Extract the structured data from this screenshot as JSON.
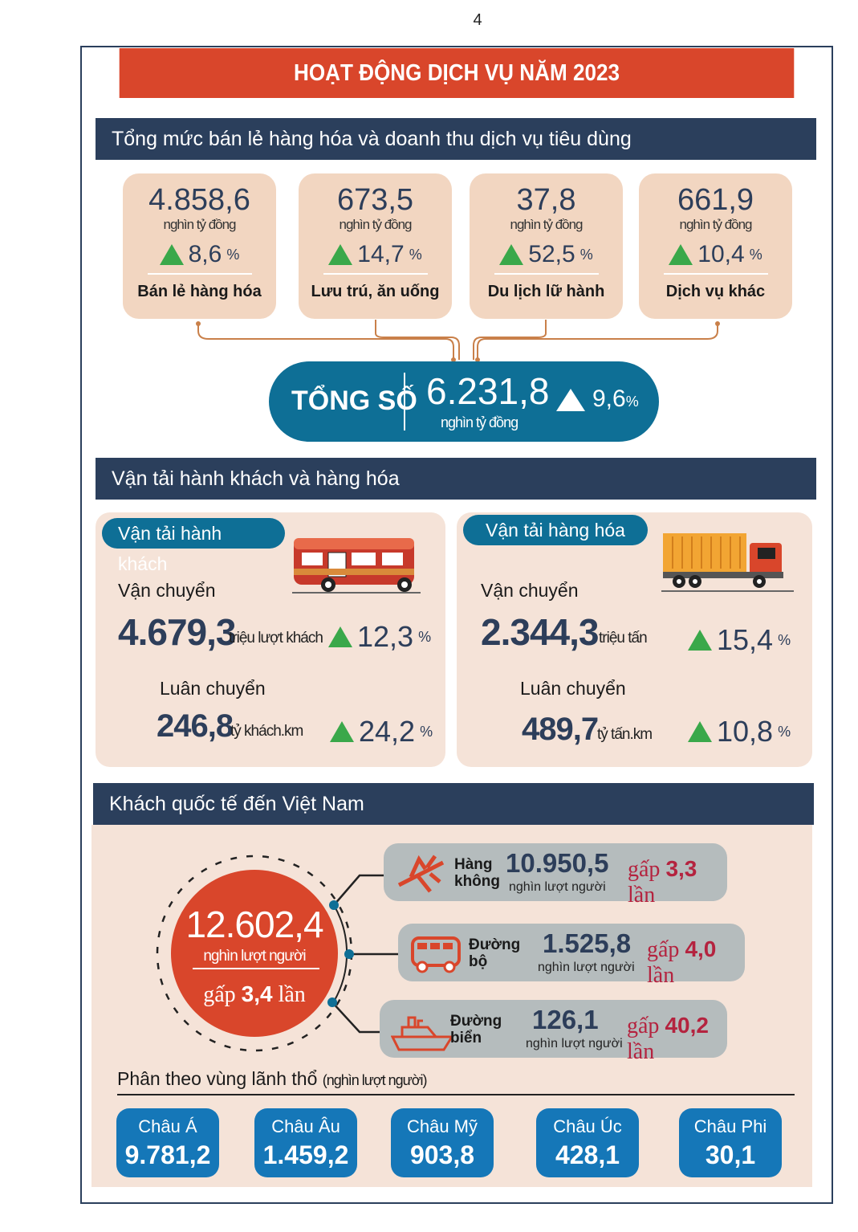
{
  "page_number": "4",
  "title": "HOẠT ĐỘNG DỊCH VỤ NĂM 2023",
  "colors": {
    "header": "#d9462b",
    "navy": "#2b3f5c",
    "card": "#f2d6c1",
    "teal": "#0e6f96",
    "up": "#3aa84a",
    "accent": "#b4233f"
  },
  "retail": {
    "heading": "Tổng mức bán lẻ hàng hóa và doanh thu dịch vụ tiêu dùng",
    "cards": [
      {
        "value": "4.858,6",
        "unit": "nghìn tỷ đồng",
        "growth": "8,6",
        "pct": "%",
        "name": "Bán lẻ hàng hóa"
      },
      {
        "value": "673,5",
        "unit": "nghìn tỷ đồng",
        "growth": "14,7",
        "pct": "%",
        "name": "Lưu trú, ăn uống"
      },
      {
        "value": "37,8",
        "unit": "nghìn tỷ đồng",
        "growth": "52,5",
        "pct": "%",
        "name": "Du lịch lữ hành"
      },
      {
        "value": "661,9",
        "unit": "nghìn tỷ đồng",
        "growth": "10,4",
        "pct": "%",
        "name": "Dịch vụ khác"
      }
    ],
    "total": {
      "label": "TỔNG SỐ",
      "value": "6.231,8",
      "unit": "nghìn tỷ đồng",
      "growth": "9,6",
      "pct": "%"
    }
  },
  "transport": {
    "heading": "Vận tải hành khách và hàng hóa",
    "passenger": {
      "tag": "Vận tải hành khách",
      "carry_label": "Vận chuyển",
      "carry_value": "4.679,3",
      "carry_unit": "triệu lượt khách",
      "carry_growth": "12,3",
      "rotate_label": "Luân chuyển",
      "rotate_value": "246,8",
      "rotate_unit": "tỷ khách.km",
      "rotate_growth": "24,2",
      "pct": "%",
      "icon": "bus-icon"
    },
    "cargo": {
      "tag": "Vận tải hàng hóa",
      "carry_label": "Vận chuyển",
      "carry_value": "2.344,3",
      "carry_unit": "triệu tấn",
      "carry_growth": "15,4",
      "rotate_label": "Luân chuyển",
      "rotate_value": "489,7",
      "rotate_unit": "tỷ tấn.km",
      "rotate_growth": "10,8",
      "pct": "%",
      "icon": "truck-icon"
    }
  },
  "visitors": {
    "heading": "Khách quốc tế đến Việt Nam",
    "total_value": "12.602,4",
    "total_unit": "nghìn lượt người",
    "total_gap_pre": "gấp",
    "total_gap": "3,4",
    "total_gap_post": "lần",
    "modes": [
      {
        "name1": "Hàng",
        "name2": "không",
        "value": "10.950,5",
        "unit": "nghìn lượt người",
        "gap_pre": "gấp",
        "gap": "3,3",
        "gap_post": "lần",
        "icon": "airplane-icon"
      },
      {
        "name1": "Đường",
        "name2": "bộ",
        "value": "1.525,8",
        "unit": "nghìn lượt người",
        "gap_pre": "gấp",
        "gap": "4,0",
        "gap_post": "lần",
        "icon": "van-icon"
      },
      {
        "name1": "Đường",
        "name2": "biển",
        "value": "126,1",
        "unit": "nghìn lượt người",
        "gap_pre": "gấp",
        "gap": "40,2",
        "gap_post": "lần",
        "icon": "ship-icon"
      }
    ],
    "region_title": "Phân theo vùng lãnh thổ",
    "region_unit": "(nghìn lượt người)",
    "regions": [
      {
        "name": "Châu Á",
        "value": "9.781,2"
      },
      {
        "name": "Châu Âu",
        "value": "1.459,2"
      },
      {
        "name": "Châu Mỹ",
        "value": "903,8"
      },
      {
        "name": "Châu Úc",
        "value": "428,1"
      },
      {
        "name": "Châu Phi",
        "value": "30,1"
      }
    ]
  }
}
